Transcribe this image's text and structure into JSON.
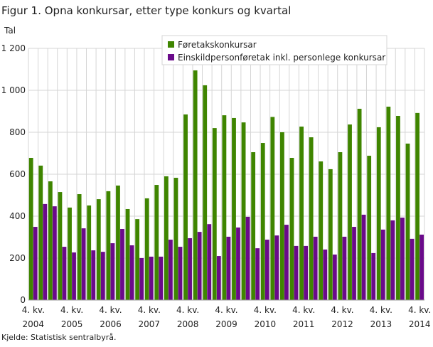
{
  "chart_data": {
    "type": "bar",
    "title": "Figur 1. Opna konkursar, etter type konkurs og kvartal",
    "ylabel": "Tal",
    "xlabel": "",
    "ylim": [
      0,
      1200
    ],
    "yticks": [
      0,
      200,
      400,
      600,
      800,
      1000,
      1200
    ],
    "ytick_labels": [
      "0",
      "200",
      "400",
      "600",
      "800",
      "1 000",
      "1 200"
    ],
    "grid": true,
    "legend_position": "top-right",
    "categories": [
      "4. kv. 2004",
      "1. kv. 2005",
      "2. kv. 2005",
      "3. kv. 2005",
      "4. kv. 2005",
      "1. kv. 2006",
      "2. kv. 2006",
      "3. kv. 2006",
      "4. kv. 2006",
      "1. kv. 2007",
      "2. kv. 2007",
      "3. kv. 2007",
      "4. kv. 2007",
      "1. kv. 2008",
      "2. kv. 2008",
      "3. kv. 2008",
      "4. kv. 2008",
      "1. kv. 2009",
      "2. kv. 2009",
      "3. kv. 2009",
      "4. kv. 2009",
      "1. kv. 2010",
      "2. kv. 2010",
      "3. kv. 2010",
      "4. kv. 2010",
      "1. kv. 2011",
      "2. kv. 2011",
      "3. kv. 2011",
      "4. kv. 2011",
      "1. kv. 2012",
      "2. kv. 2012",
      "3. kv. 2012",
      "4. kv. 2012",
      "1. kv. 2013",
      "2. kv. 2013",
      "3. kv. 2013",
      "4. kv. 2013",
      "1. kv. 2014",
      "2. kv. 2014",
      "3. kv. 2014",
      "4. kv. 2014"
    ],
    "xtick_labels": [
      {
        "index": 0,
        "quarter": "4. kv.",
        "year": "2004"
      },
      {
        "index": 4,
        "quarter": "4. kv.",
        "year": "2005"
      },
      {
        "index": 8,
        "quarter": "4. kv.",
        "year": "2006"
      },
      {
        "index": 12,
        "quarter": "4. kv.",
        "year": "2007"
      },
      {
        "index": 16,
        "quarter": "4. kv.",
        "year": "2008"
      },
      {
        "index": 20,
        "quarter": "4. kv.",
        "year": "2009"
      },
      {
        "index": 24,
        "quarter": "4. kv.",
        "year": "2010"
      },
      {
        "index": 28,
        "quarter": "4. kv.",
        "year": "2011"
      },
      {
        "index": 32,
        "quarter": "4. kv.",
        "year": "2012"
      },
      {
        "index": 36,
        "quarter": "4. kv.",
        "year": "2013"
      },
      {
        "index": 40,
        "quarter": "4. kv.",
        "year": "2014"
      }
    ],
    "series": [
      {
        "name": "Føretakskonkursar",
        "color": "#3f8500",
        "values": [
          678,
          641,
          566,
          515,
          441,
          505,
          451,
          481,
          519,
          546,
          434,
          386,
          485,
          549,
          590,
          583,
          885,
          1095,
          1024,
          820,
          881,
          868,
          847,
          705,
          749,
          873,
          800,
          678,
          827,
          776,
          661,
          624,
          705,
          837,
          912,
          688,
          824,
          922,
          878,
          746,
          892
        ]
      },
      {
        "name": "Einskildpersonføretak inkl. personlege konkursar",
        "color": "#6a0a8a",
        "values": [
          349,
          458,
          447,
          254,
          227,
          342,
          237,
          230,
          271,
          339,
          261,
          200,
          207,
          207,
          288,
          254,
          295,
          325,
          362,
          210,
          302,
          346,
          397,
          247,
          288,
          308,
          359,
          258,
          258,
          302,
          241,
          217,
          302,
          349,
          407,
          224,
          336,
          380,
          393,
          292,
          312
        ]
      }
    ],
    "source": "Kjelde: Statistisk sentralbyrå."
  }
}
